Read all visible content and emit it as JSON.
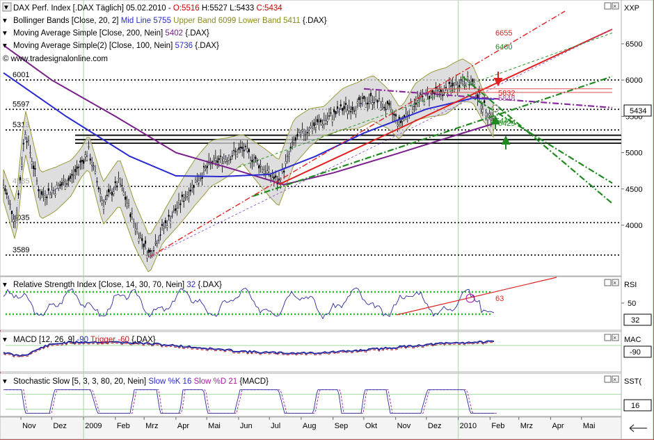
{
  "window": {
    "panel_title_main": "DAX Perf. Index [.DAX  Täglich] 05.02.2010 - ",
    "ohlc": {
      "open": "O:5516",
      "high": "H:5527",
      "low": "L:5433",
      "close": "C:5434"
    },
    "bollinger": {
      "name": "Bollinger Bands [Close, 20, 2]",
      "mid": "Mid Line 5755",
      "upper": "Upper Band 6099",
      "lower": "Lower Band 5411",
      "sym": "{.DAX}"
    },
    "ma200": {
      "name": "Moving Average Simple [Close, 200, Nein]",
      "value": "5402",
      "sym": "{.DAX}"
    },
    "ma100": {
      "name": "Moving Average Simple(2) [Close, 100, Nein]",
      "value": "5736",
      "sym": "{.DAX}"
    },
    "watermark": "© www.tradesignalonline.com",
    "axis_corner_main": "XXP",
    "price_badge": "5434"
  },
  "colors": {
    "candle": "#000000",
    "boll_fill": "#d3d3d3",
    "boll_band": "#9a9a3a",
    "boll_mid": "#7080ff",
    "ma200": "#7a1f8a",
    "ma100": "#2a2ad0",
    "trend_red": "#e02020",
    "trend_green": "#1f8a1f",
    "rsi": "#2a2aa0",
    "macd": "#2a2aa0",
    "trigger": "#c02020",
    "stoch_k": "#2a2aa0",
    "stoch_d": "#a020a0",
    "support": "#000000",
    "band_red": "#e05050"
  },
  "chart_data": [
    {
      "type": "candlestick",
      "title": "DAX Perf. Index [.DAX  Täglich] 05.02.2010",
      "x_tick_labels": [
        "Nov",
        "Dez",
        "2009",
        "Feb",
        "Mrz",
        "Apr",
        "Mai",
        "Jun",
        "Jul",
        "Aug",
        "Sep",
        "Okt",
        "Nov",
        "Dez",
        "2010",
        "Feb",
        "Mrz",
        "Apr",
        "Mai"
      ],
      "y_tick_labels": [
        "4000",
        "4500",
        "5000",
        "5500",
        "6000",
        "6500"
      ],
      "ylim": [
        3450,
        6750
      ],
      "level_labels": [
        {
          "text": "6001",
          "value": 6001
        },
        {
          "text": "5597",
          "value": 5597
        },
        {
          "text": "5313",
          "value": 5313
        },
        {
          "text": "4035",
          "value": 4035
        },
        {
          "text": "3589",
          "value": 3589
        }
      ],
      "faded_level_label": {
        "text": "4535",
        "value": 4535
      },
      "projection_labels": [
        {
          "text": "6655",
          "value": 6655,
          "color": "#e02020"
        },
        {
          "text": "6460",
          "value": 6460,
          "color": "#1f8a1f"
        },
        {
          "text": "5832",
          "value": 5832,
          "color": "#e02020"
        },
        {
          "text": "5848",
          "value": 5848,
          "color": "#a060a0"
        },
        {
          "text": "5441",
          "value": 5441,
          "color": "#1f8a1f"
        },
        {
          "text": "5429",
          "value": 5429,
          "color": "#1f8a1f"
        }
      ],
      "support_lines": [
        5240,
        5180,
        5130
      ],
      "dotted_levels": [
        6001,
        5597,
        5313,
        4535,
        4035,
        3589
      ],
      "last_close": 5434,
      "close_path": [
        {
          "date": "2008-10-15",
          "close": 4550
        },
        {
          "date": "2008-10-27",
          "close": 4035
        },
        {
          "date": "2008-11-05",
          "close": 5313
        },
        {
          "date": "2008-11-20",
          "close": 4400
        },
        {
          "date": "2008-12-05",
          "close": 4500
        },
        {
          "date": "2008-12-20",
          "close": 4650
        },
        {
          "date": "2009-01-06",
          "close": 5020
        },
        {
          "date": "2009-01-20",
          "close": 4300
        },
        {
          "date": "2009-02-05",
          "close": 4600
        },
        {
          "date": "2009-02-20",
          "close": 4000
        },
        {
          "date": "2009-03-06",
          "close": 3589
        },
        {
          "date": "2009-03-20",
          "close": 3980
        },
        {
          "date": "2009-04-05",
          "close": 4300
        },
        {
          "date": "2009-04-20",
          "close": 4600
        },
        {
          "date": "2009-05-05",
          "close": 4850
        },
        {
          "date": "2009-05-20",
          "close": 4930
        },
        {
          "date": "2009-06-05",
          "close": 5050
        },
        {
          "date": "2009-06-20",
          "close": 4850
        },
        {
          "date": "2009-07-10",
          "close": 4580
        },
        {
          "date": "2009-07-25",
          "close": 5150
        },
        {
          "date": "2009-08-10",
          "close": 5350
        },
        {
          "date": "2009-08-25",
          "close": 5450
        },
        {
          "date": "2009-09-10",
          "close": 5600
        },
        {
          "date": "2009-09-25",
          "close": 5650
        },
        {
          "date": "2009-10-10",
          "close": 5750
        },
        {
          "date": "2009-10-25",
          "close": 5600
        },
        {
          "date": "2009-11-05",
          "close": 5400
        },
        {
          "date": "2009-11-20",
          "close": 5700
        },
        {
          "date": "2009-12-05",
          "close": 5800
        },
        {
          "date": "2009-12-20",
          "close": 5850
        },
        {
          "date": "2010-01-05",
          "close": 6000
        },
        {
          "date": "2010-01-15",
          "close": 5950
        },
        {
          "date": "2010-01-25",
          "close": 5650
        },
        {
          "date": "2010-02-05",
          "close": 5434
        }
      ],
      "ma200_path": [
        {
          "date": "2008-10-15",
          "close": 6480
        },
        {
          "date": "2008-12-01",
          "close": 6000
        },
        {
          "date": "2009-02-01",
          "close": 5500
        },
        {
          "date": "2009-04-01",
          "close": 5000
        },
        {
          "date": "2009-06-01",
          "close": 4750
        },
        {
          "date": "2009-07-15",
          "close": 4560
        },
        {
          "date": "2009-09-01",
          "close": 4720
        },
        {
          "date": "2009-11-01",
          "close": 4980
        },
        {
          "date": "2010-01-01",
          "close": 5250
        },
        {
          "date": "2010-02-05",
          "close": 5402
        }
      ],
      "ma100_path": [
        {
          "date": "2008-10-15",
          "close": 6100
        },
        {
          "date": "2008-12-15",
          "close": 5500
        },
        {
          "date": "2009-02-15",
          "close": 4950
        },
        {
          "date": "2009-04-01",
          "close": 4680
        },
        {
          "date": "2009-05-15",
          "close": 4670
        },
        {
          "date": "2009-07-01",
          "close": 4700
        },
        {
          "date": "2009-08-15",
          "close": 4950
        },
        {
          "date": "2009-10-01",
          "close": 5270
        },
        {
          "date": "2009-12-01",
          "close": 5600
        },
        {
          "date": "2010-01-15",
          "close": 5750
        },
        {
          "date": "2010-02-05",
          "close": 5736
        }
      ]
    },
    {
      "type": "line",
      "title": "Relative Strength Index [Close, 14, 30, 70, Nein] 32 {.DAX}",
      "name": "Relative Strength Index [Close, 14, 30, 70, Nein]",
      "value": "32",
      "sym": "{.DAX}",
      "y_tick_labels": [
        "50"
      ],
      "ylim": [
        20,
        85
      ],
      "bands": [
        70,
        30
      ],
      "trend_label": "63",
      "axis_corner": "RSI",
      "last": "32"
    },
    {
      "type": "line",
      "title": "MACD [12, 26, 9] -90 Trigger -60 {.DAX}",
      "name": "MACD [12, 26, 9]",
      "value": "-90",
      "trigger_label": "Trigger",
      "trigger_value": "-60",
      "sym": "{.DAX}",
      "axis_corner": "MAC",
      "last": "-90"
    },
    {
      "type": "line",
      "title": "Stochastic Slow [5, 3, 3, 80, 20, Nein] Slow %K 16 Slow %D 21 {MACD}",
      "name": "Stochastic Slow [5, 3, 3, 80, 20, Nein]",
      "k_label": "Slow %K 16",
      "d_label": "Slow %D 21",
      "sym": "{MACD}",
      "bands": [
        80,
        20
      ],
      "axis_corner": "SST(",
      "last": "16"
    }
  ]
}
